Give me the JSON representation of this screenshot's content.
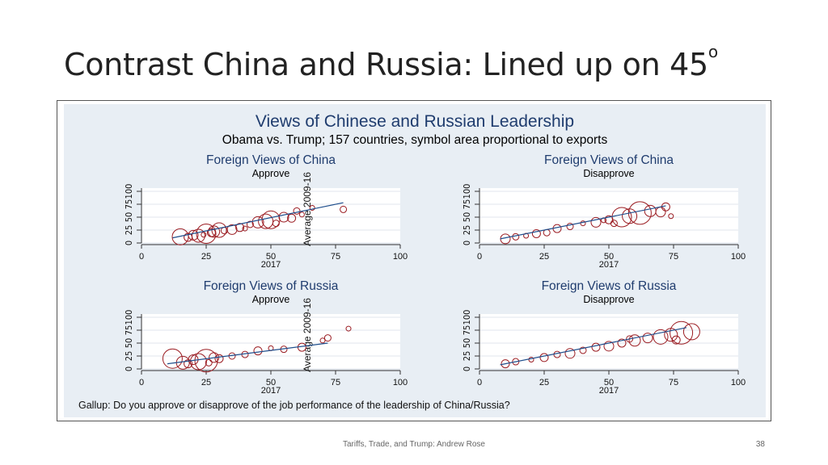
{
  "slide": {
    "title": "Contrast China and Russia: Lined up on 45",
    "title_sup": "o",
    "footer": "Tariffs, Trade, and Trump: Andrew Rose",
    "page_number": "38"
  },
  "figure": {
    "title": "Views of Chinese and Russian Leadership",
    "subtitle": "Obama vs. Trump; 157 countries, symbol area proportional to exports",
    "note": "Gallup: Do you approve or disapprove of the job performance of the leadership of China/Russia?"
  },
  "colors": {
    "marker": "#9b1c22",
    "fit": "#1f4e8c",
    "title": "#1f3c6e",
    "panel_bg": "#e8eef4"
  },
  "chart_data": [
    {
      "type": "scatter",
      "title": "Foreign Views of China",
      "subtitle": "Approve",
      "xlabel": "2017",
      "ylabel": "Average 2009-16",
      "xlim": [
        0,
        100
      ],
      "ylim": [
        0,
        100
      ],
      "xticks": [
        0,
        25,
        50,
        75,
        100
      ],
      "yticks": [
        0,
        25,
        50,
        75,
        100
      ],
      "grid": true,
      "fit_line": [
        [
          12,
          10
        ],
        [
          78,
          78
        ]
      ],
      "points": [
        [
          15,
          12,
          10
        ],
        [
          20,
          15,
          6
        ],
        [
          25,
          18,
          12
        ],
        [
          22,
          14,
          8
        ],
        [
          28,
          22,
          7
        ],
        [
          30,
          25,
          9
        ],
        [
          35,
          26,
          6
        ],
        [
          38,
          30,
          5
        ],
        [
          42,
          36,
          4
        ],
        [
          45,
          40,
          7
        ],
        [
          48,
          42,
          9
        ],
        [
          50,
          45,
          11
        ],
        [
          55,
          50,
          6
        ],
        [
          58,
          48,
          5
        ],
        [
          60,
          62,
          4
        ],
        [
          62,
          55,
          3
        ],
        [
          66,
          68,
          3
        ],
        [
          78,
          65,
          4
        ],
        [
          27,
          20,
          5
        ],
        [
          32,
          24,
          4
        ],
        [
          24,
          16,
          3
        ],
        [
          18,
          11,
          5
        ],
        [
          40,
          28,
          3
        ],
        [
          52,
          38,
          4
        ]
      ]
    },
    {
      "type": "scatter",
      "title": "Foreign Views of China",
      "subtitle": "Disapprove",
      "xlabel": "2017",
      "ylabel": "",
      "xlim": [
        0,
        100
      ],
      "ylim": [
        0,
        100
      ],
      "xticks": [
        0,
        25,
        50,
        75,
        100
      ],
      "yticks": [
        0,
        25,
        50,
        75,
        100
      ],
      "grid": true,
      "fit_line": [
        [
          8,
          8
        ],
        [
          72,
          72
        ]
      ],
      "points": [
        [
          10,
          8,
          6
        ],
        [
          14,
          12,
          4
        ],
        [
          18,
          14,
          3
        ],
        [
          22,
          18,
          5
        ],
        [
          26,
          20,
          4
        ],
        [
          30,
          28,
          5
        ],
        [
          35,
          32,
          4
        ],
        [
          40,
          38,
          3
        ],
        [
          45,
          40,
          6
        ],
        [
          50,
          45,
          5
        ],
        [
          55,
          50,
          12
        ],
        [
          58,
          52,
          9
        ],
        [
          62,
          58,
          14
        ],
        [
          66,
          62,
          7
        ],
        [
          70,
          60,
          6
        ],
        [
          72,
          70,
          5
        ],
        [
          52,
          38,
          4
        ],
        [
          48,
          44,
          3
        ],
        [
          74,
          52,
          3
        ]
      ]
    },
    {
      "type": "scatter",
      "title": "Foreign Views of Russia",
      "subtitle": "Approve",
      "xlabel": "2017",
      "ylabel": "Average 2009-16",
      "xlim": [
        0,
        100
      ],
      "ylim": [
        0,
        100
      ],
      "xticks": [
        0,
        25,
        50,
        75,
        100
      ],
      "yticks": [
        0,
        25,
        50,
        75,
        100
      ],
      "grid": true,
      "fit_line": [
        [
          10,
          10
        ],
        [
          72,
          50
        ]
      ],
      "points": [
        [
          12,
          20,
          12
        ],
        [
          16,
          12,
          8
        ],
        [
          20,
          18,
          6
        ],
        [
          22,
          14,
          10
        ],
        [
          25,
          16,
          14
        ],
        [
          28,
          22,
          6
        ],
        [
          30,
          20,
          5
        ],
        [
          35,
          25,
          4
        ],
        [
          40,
          28,
          4
        ],
        [
          45,
          35,
          5
        ],
        [
          50,
          40,
          3
        ],
        [
          55,
          38,
          4
        ],
        [
          62,
          42,
          5
        ],
        [
          70,
          55,
          3
        ],
        [
          72,
          60,
          4
        ],
        [
          80,
          78,
          3
        ],
        [
          18,
          10,
          5
        ],
        [
          26,
          12,
          4
        ]
      ]
    },
    {
      "type": "scatter",
      "title": "Foreign Views of Russia",
      "subtitle": "Disapprove",
      "xlabel": "2017",
      "ylabel": "",
      "xlim": [
        0,
        100
      ],
      "ylim": [
        0,
        100
      ],
      "xticks": [
        0,
        25,
        50,
        75,
        100
      ],
      "yticks": [
        0,
        25,
        50,
        75,
        100
      ],
      "grid": true,
      "fit_line": [
        [
          8,
          8
        ],
        [
          80,
          80
        ]
      ],
      "points": [
        [
          10,
          10,
          5
        ],
        [
          14,
          14,
          4
        ],
        [
          20,
          18,
          3
        ],
        [
          25,
          22,
          5
        ],
        [
          30,
          28,
          4
        ],
        [
          35,
          30,
          6
        ],
        [
          40,
          36,
          4
        ],
        [
          45,
          42,
          5
        ],
        [
          50,
          44,
          6
        ],
        [
          55,
          50,
          5
        ],
        [
          60,
          55,
          7
        ],
        [
          65,
          60,
          6
        ],
        [
          70,
          62,
          9
        ],
        [
          74,
          66,
          8
        ],
        [
          78,
          70,
          14
        ],
        [
          82,
          72,
          10
        ],
        [
          76,
          56,
          5
        ],
        [
          58,
          58,
          4
        ]
      ]
    }
  ]
}
